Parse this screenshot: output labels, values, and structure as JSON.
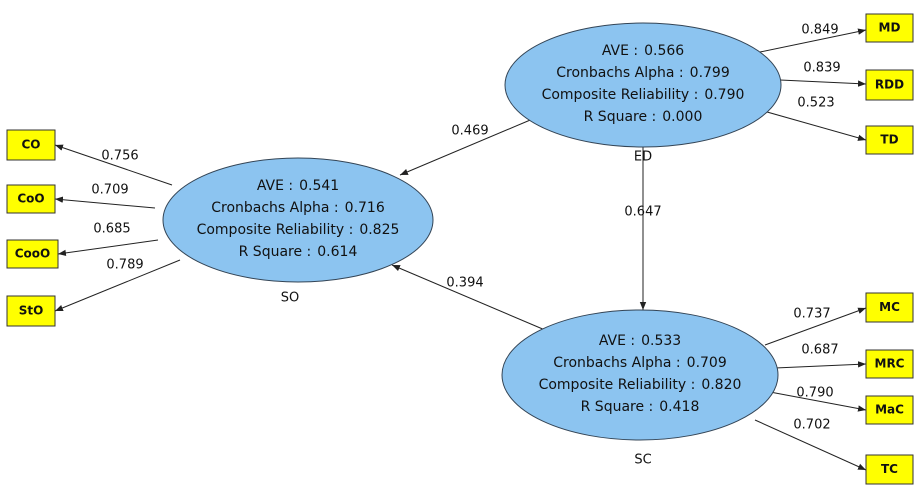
{
  "constructs": [
    {
      "name": "ED",
      "stats": [
        {
          "label": "AVE :",
          "value": "0.566"
        },
        {
          "label": "Cronbachs Alpha :",
          "value": "0.799"
        },
        {
          "label": "Composite Reliability :",
          "value": "0.790"
        },
        {
          "label": "R Square :",
          "value": "0.000"
        }
      ],
      "indicators": [
        {
          "name": "MD",
          "loading": "0.849"
        },
        {
          "name": "RDD",
          "loading": "0.839"
        },
        {
          "name": "TD",
          "loading": "0.523"
        }
      ]
    },
    {
      "name": "SO",
      "stats": [
        {
          "label": "AVE :",
          "value": "0.541"
        },
        {
          "label": "Cronbachs Alpha :",
          "value": "0.716"
        },
        {
          "label": "Composite Reliability :",
          "value": "0.825"
        },
        {
          "label": "R Square :",
          "value": "0.614"
        }
      ],
      "indicators": [
        {
          "name": "CO",
          "loading": "0.756"
        },
        {
          "name": "CoO",
          "loading": "0.709"
        },
        {
          "name": "CooO",
          "loading": "0.685"
        },
        {
          "name": "StO",
          "loading": "0.789"
        }
      ]
    },
    {
      "name": "SC",
      "stats": [
        {
          "label": "AVE :",
          "value": "0.533"
        },
        {
          "label": "Cronbachs Alpha :",
          "value": "0.709"
        },
        {
          "label": "Composite Reliability :",
          "value": "0.820"
        },
        {
          "label": "R Square :",
          "value": "0.418"
        }
      ],
      "indicators": [
        {
          "name": "MC",
          "loading": "0.737"
        },
        {
          "name": "MRC",
          "loading": "0.687"
        },
        {
          "name": "MaC",
          "loading": "0.790"
        },
        {
          "name": "TC",
          "loading": "0.702"
        }
      ]
    }
  ],
  "paths": [
    {
      "value": "0.469"
    },
    {
      "value": "0.647"
    },
    {
      "value": "0.394"
    }
  ]
}
